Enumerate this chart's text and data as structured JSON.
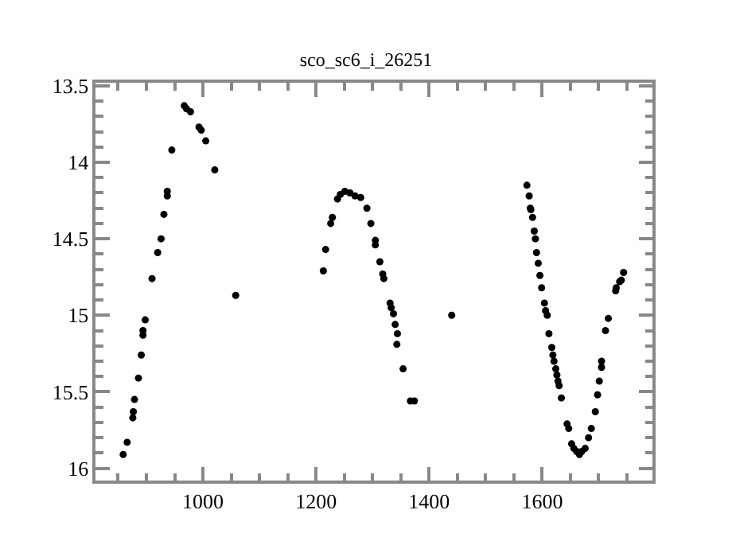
{
  "chart_data": {
    "type": "scatter",
    "title": "sco_sc6_i_26251",
    "x": [
      859,
      866,
      876,
      877,
      879,
      886,
      891,
      894,
      894,
      898,
      910,
      920,
      926,
      931,
      937,
      937,
      945,
      967,
      971,
      978,
      993,
      997,
      1005,
      1021,
      1058,
      1213,
      1217,
      1226,
      1229,
      1238,
      1243,
      1251,
      1260,
      1269,
      1279,
      1290,
      1297,
      1305,
      1305,
      1313,
      1318,
      1320,
      1331,
      1333,
      1337,
      1340,
      1344,
      1343,
      1354,
      1367,
      1374,
      1440,
      1573,
      1577,
      1579,
      1580,
      1583,
      1586,
      1588,
      1590,
      1593,
      1596,
      1599,
      1604,
      1606,
      1609,
      1612,
      1617,
      1619,
      1621,
      1624,
      1626,
      1628,
      1630,
      1634,
      1644,
      1647,
      1652,
      1656,
      1661,
      1666,
      1670,
      1676,
      1682,
      1687,
      1694,
      1698,
      1701,
      1705,
      1705,
      1712,
      1717,
      1730,
      1731,
      1737,
      1740,
      1744
    ],
    "values": [
      15.91,
      15.83,
      15.67,
      15.63,
      15.55,
      15.41,
      15.26,
      15.13,
      15.1,
      15.03,
      14.76,
      14.59,
      14.5,
      14.34,
      14.22,
      14.19,
      13.92,
      13.63,
      13.65,
      13.67,
      13.77,
      13.79,
      13.86,
      14.05,
      14.87,
      14.71,
      14.57,
      14.4,
      14.36,
      14.24,
      14.21,
      14.19,
      14.2,
      14.22,
      14.23,
      14.3,
      14.4,
      14.51,
      14.54,
      14.65,
      14.73,
      14.76,
      14.92,
      14.95,
      14.99,
      15.06,
      15.12,
      15.19,
      15.35,
      15.56,
      15.56,
      15.0,
      14.15,
      14.22,
      14.3,
      14.31,
      14.36,
      14.45,
      14.5,
      14.59,
      14.66,
      14.74,
      14.82,
      14.92,
      14.97,
      15.0,
      15.12,
      15.21,
      15.26,
      15.3,
      15.35,
      15.39,
      15.43,
      15.46,
      15.54,
      15.71,
      15.74,
      15.84,
      15.87,
      15.89,
      15.91,
      15.89,
      15.87,
      15.8,
      15.74,
      15.63,
      15.52,
      15.43,
      15.34,
      15.3,
      15.1,
      15.02,
      14.84,
      14.82,
      14.78,
      14.77,
      14.72
    ],
    "color": "#000000",
    "marker": "circle",
    "xlim": [
      810,
      1795
    ],
    "xticks": [
      1000,
      1200,
      1400,
      1600
    ],
    "ylim": [
      16.08,
      13.48
    ],
    "yticks": [
      13.5,
      14,
      14.5,
      15,
      15.5,
      16
    ],
    "grid": false,
    "legend": false
  }
}
